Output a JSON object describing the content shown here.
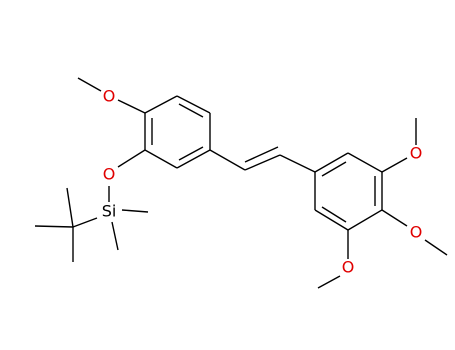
{
  "atoms": [
    {
      "label": "O"
    },
    {
      "label": "O"
    },
    {
      "label": "Si"
    },
    {
      "label": "O"
    },
    {
      "label": "O"
    },
    {
      "label": "O"
    }
  ]
}
